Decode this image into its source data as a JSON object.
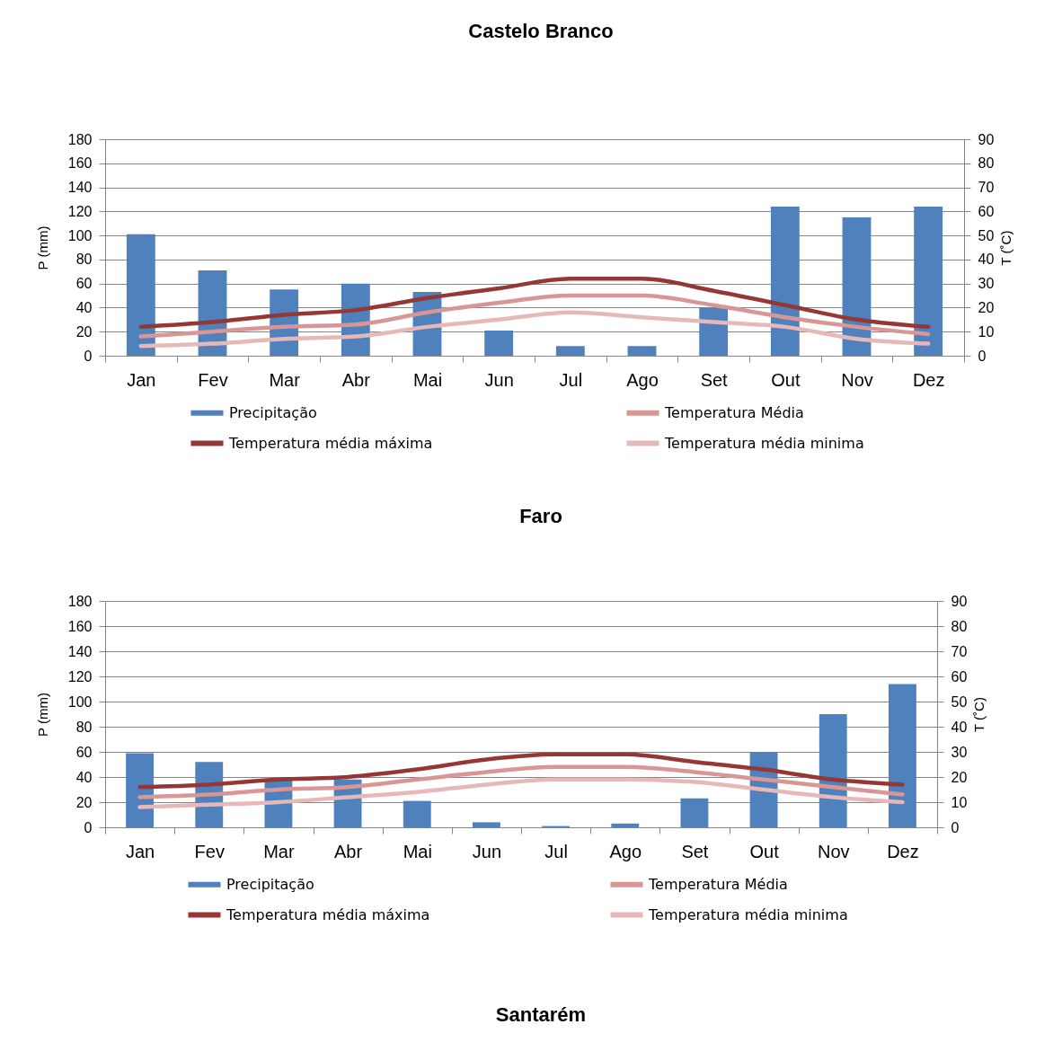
{
  "chart_data": [
    {
      "type": "bar",
      "title": "Castelo Branco",
      "categories": [
        "Jan",
        "Fev",
        "Mar",
        "Abr",
        "Mai",
        "Jun",
        "Jul",
        "Ago",
        "Set",
        "Out",
        "Nov",
        "Dez"
      ],
      "ylabel": "P (mm)",
      "y2label": "T (˚C)",
      "ylim": [
        0,
        180
      ],
      "yticks": [
        0,
        20,
        40,
        60,
        80,
        100,
        120,
        140,
        160,
        180
      ],
      "y2lim": [
        0,
        90
      ],
      "y2ticks": [
        0,
        10,
        20,
        30,
        40,
        50,
        60,
        70,
        80,
        90
      ],
      "grid": "y",
      "legend": "bottom",
      "series": [
        {
          "name": "Precipitação",
          "type": "bar",
          "color": "#4f81bd",
          "values": [
            101,
            71,
            55,
            60,
            53,
            21,
            8,
            8,
            40,
            124,
            115,
            124
          ]
        },
        {
          "name": "Temperatura Média",
          "type": "line",
          "axis": "y2",
          "color": "#d99694",
          "values": [
            8,
            10,
            12,
            13,
            18,
            22,
            25,
            25,
            21,
            16,
            12,
            9
          ]
        },
        {
          "name": "Temperatura média máxima",
          "type": "line",
          "axis": "y2",
          "color": "#953735",
          "values": [
            12,
            14,
            17,
            19,
            24,
            28,
            32,
            32,
            27,
            21,
            15,
            12
          ]
        },
        {
          "name": "Temperatura média minima",
          "type": "line",
          "axis": "y2",
          "color": "#e6b9b8",
          "values": [
            4,
            5,
            7,
            8,
            12,
            15,
            18,
            16,
            14,
            12,
            7,
            5
          ]
        }
      ]
    },
    {
      "type": "bar",
      "title": "Faro",
      "categories": [
        "Jan",
        "Fev",
        "Mar",
        "Abr",
        "Mai",
        "Jun",
        "Jul",
        "Ago",
        "Set",
        "Out",
        "Nov",
        "Dez"
      ],
      "ylabel": "P (mm)",
      "y2label": "T (˚C)",
      "ylim": [
        0,
        180
      ],
      "yticks": [
        0,
        20,
        40,
        60,
        80,
        100,
        120,
        140,
        160,
        180
      ],
      "y2lim": [
        0,
        90
      ],
      "y2ticks": [
        0,
        10,
        20,
        30,
        40,
        50,
        60,
        70,
        80,
        90
      ],
      "grid": "y",
      "legend": "bottom",
      "series": [
        {
          "name": "Precipitação",
          "type": "bar",
          "color": "#4f81bd",
          "values": [
            59,
            52,
            38,
            38,
            21,
            4,
            1,
            3,
            23,
            60,
            90,
            114
          ]
        },
        {
          "name": "Temperatura Média",
          "type": "line",
          "axis": "y2",
          "color": "#d99694",
          "values": [
            12,
            13,
            15,
            16,
            19,
            22,
            24,
            24,
            22,
            19,
            16,
            13
          ]
        },
        {
          "name": "Temperatura média máxima",
          "type": "line",
          "axis": "y2",
          "color": "#953735",
          "values": [
            16,
            17,
            19,
            20,
            23,
            27,
            29,
            29,
            26,
            23,
            19,
            17
          ]
        },
        {
          "name": "Temperatura média minima",
          "type": "line",
          "axis": "y2",
          "color": "#e6b9b8",
          "values": [
            8,
            9,
            10,
            12,
            14,
            17,
            19,
            19,
            18,
            15,
            12,
            10
          ]
        }
      ]
    },
    {
      "type": "other",
      "title": "Santarém"
    }
  ]
}
